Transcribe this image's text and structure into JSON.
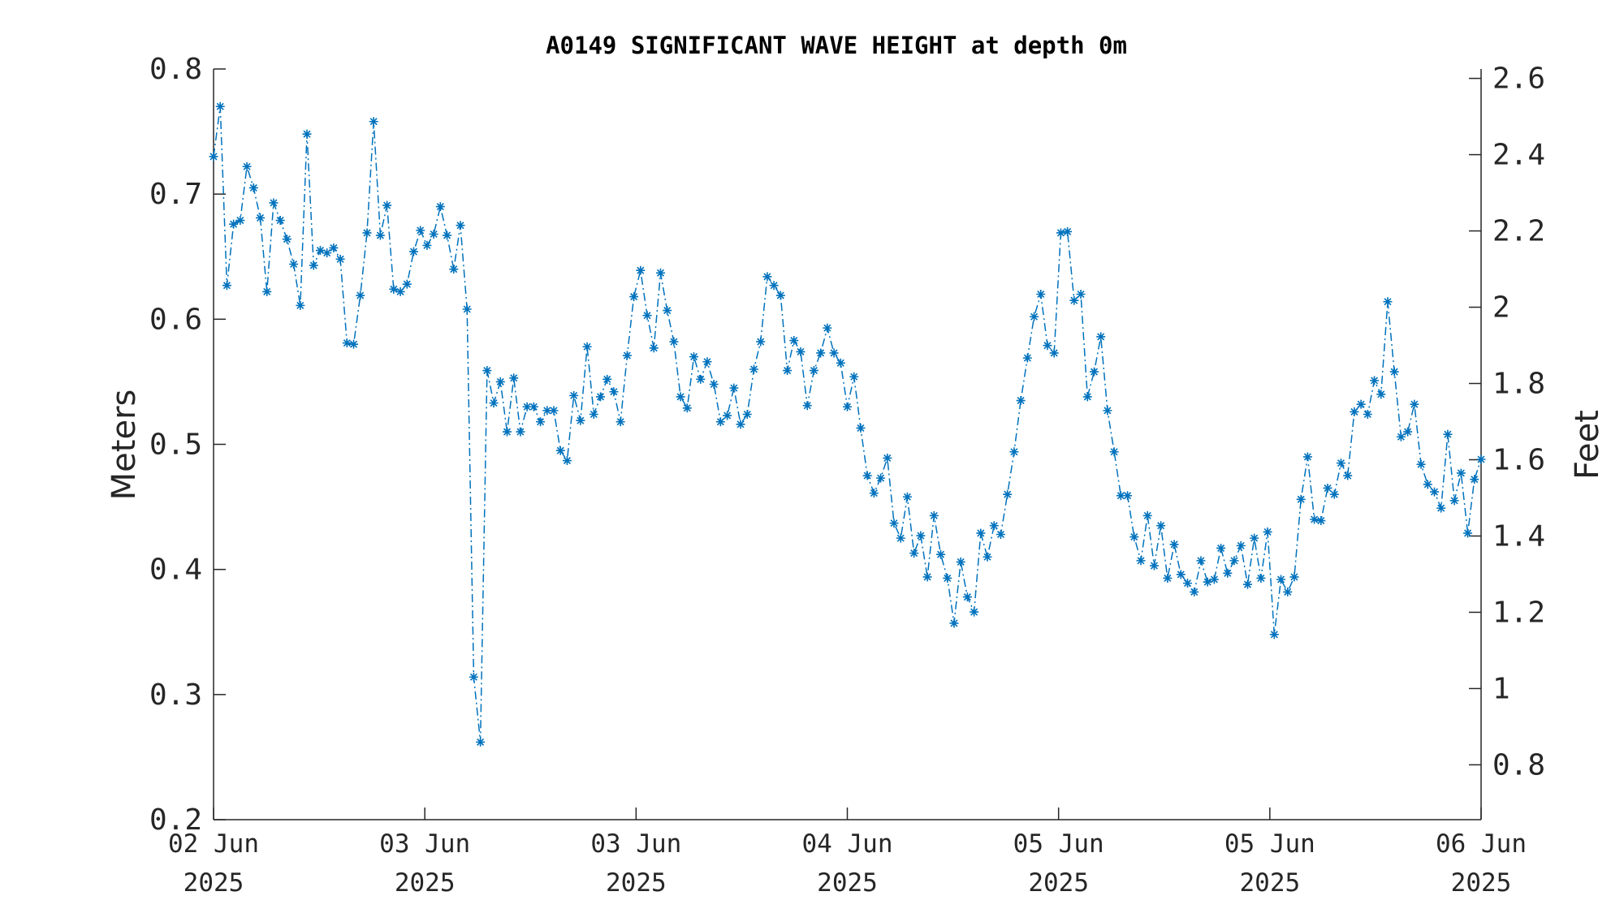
{
  "chart_data": {
    "type": "line",
    "title": "A0149 SIGNIFICANT WAVE HEIGHT at depth 0m",
    "ylabel": "Meters",
    "y2label": "Feet",
    "ylim": [
      0.2,
      0.8
    ],
    "yticks": [
      "0.2",
      "0.3",
      "0.4",
      "0.5",
      "0.6",
      "0.7",
      "0.8"
    ],
    "y2ticks": [
      "0.8",
      "1",
      "1.2",
      "1.4",
      "1.6",
      "1.8",
      "2",
      "2.2",
      "2.4",
      "2.6"
    ],
    "xticks": [
      {
        "day": "02 Jun",
        "year": "2025"
      },
      {
        "day": "03 Jun",
        "year": "2025"
      },
      {
        "day": "03 Jun",
        "year": "2025"
      },
      {
        "day": "04 Jun",
        "year": "2025"
      },
      {
        "day": "05 Jun",
        "year": "2025"
      },
      {
        "day": "05 Jun",
        "year": "2025"
      },
      {
        "day": "06 Jun",
        "year": "2025"
      }
    ],
    "grid": false,
    "line_color": "#0072BD",
    "line_style": "dash-dot",
    "marker": "asterisk",
    "series": [
      {
        "values": [
          0.73,
          0.77,
          0.627,
          0.676,
          0.679,
          0.722,
          0.705,
          0.681,
          0.622,
          0.693,
          0.679,
          0.664,
          0.644,
          0.611,
          0.748,
          0.643,
          0.655,
          0.653,
          0.657,
          0.648,
          0.581,
          0.58,
          0.619,
          0.669,
          0.758,
          0.667,
          0.691,
          0.624,
          0.622,
          0.628,
          0.654,
          0.671,
          0.659,
          0.668,
          0.69,
          0.667,
          0.64,
          0.675,
          0.608,
          0.314,
          0.262,
          0.559,
          0.533,
          0.55,
          0.51,
          0.553,
          0.51,
          0.53,
          0.53,
          0.518,
          0.527,
          0.527,
          0.495,
          0.487,
          0.539,
          0.519,
          0.578,
          0.524,
          0.538,
          0.552,
          0.542,
          0.518,
          0.571,
          0.618,
          0.639,
          0.603,
          0.577,
          0.637,
          0.607,
          0.582,
          0.538,
          0.529,
          0.57,
          0.552,
          0.566,
          0.548,
          0.518,
          0.523,
          0.545,
          0.516,
          0.524,
          0.56,
          0.582,
          0.634,
          0.627,
          0.619,
          0.559,
          0.583,
          0.574,
          0.531,
          0.559,
          0.573,
          0.593,
          0.573,
          0.565,
          0.53,
          0.554,
          0.513,
          0.475,
          0.461,
          0.473,
          0.489,
          0.437,
          0.425,
          0.458,
          0.413,
          0.427,
          0.394,
          0.443,
          0.412,
          0.393,
          0.357,
          0.406,
          0.378,
          0.366,
          0.429,
          0.41,
          0.435,
          0.428,
          0.46,
          0.494,
          0.535,
          0.569,
          0.602,
          0.62,
          0.579,
          0.573,
          0.669,
          0.67,
          0.615,
          0.62,
          0.538,
          0.558,
          0.586,
          0.527,
          0.494,
          0.459,
          0.459,
          0.426,
          0.407,
          0.443,
          0.403,
          0.435,
          0.393,
          0.42,
          0.396,
          0.389,
          0.382,
          0.407,
          0.39,
          0.392,
          0.417,
          0.397,
          0.407,
          0.419,
          0.388,
          0.425,
          0.393,
          0.43,
          0.348,
          0.392,
          0.382,
          0.394,
          0.456,
          0.49,
          0.44,
          0.439,
          0.465,
          0.46,
          0.485,
          0.475,
          0.526,
          0.532,
          0.524,
          0.551,
          0.54,
          0.614,
          0.558,
          0.506,
          0.51,
          0.532,
          0.484,
          0.468,
          0.462,
          0.449,
          0.508,
          0.455,
          0.477,
          0.429,
          0.472,
          0.488
        ]
      }
    ]
  }
}
